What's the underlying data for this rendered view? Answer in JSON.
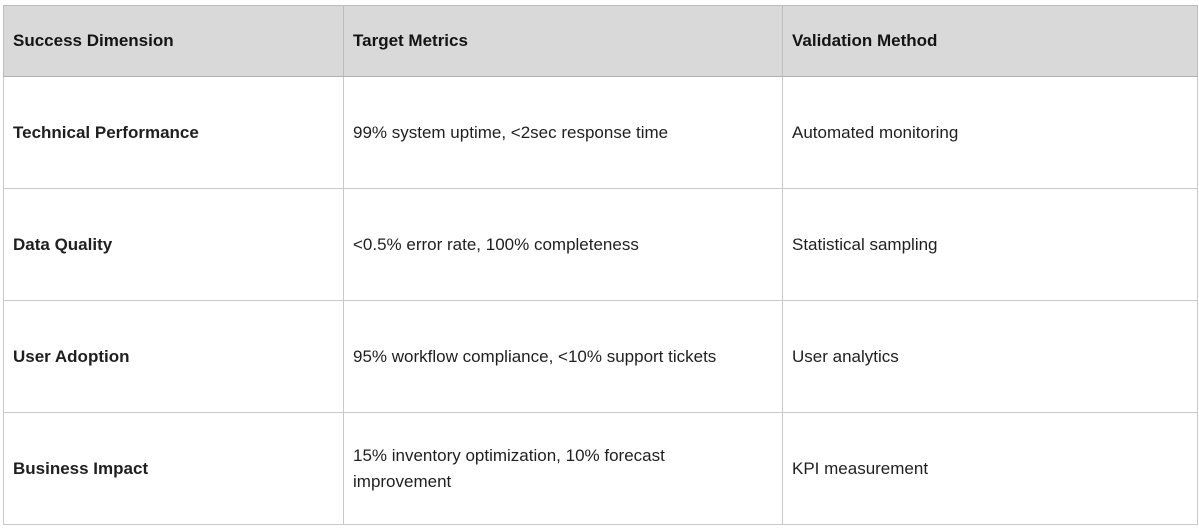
{
  "table": {
    "columns": [
      {
        "label": "Success Dimension"
      },
      {
        "label": "Target Metrics"
      },
      {
        "label": "Validation Method"
      }
    ],
    "rows": [
      {
        "dimension": "Technical Performance",
        "metrics": "99% system uptime, <2sec response time",
        "validation": "Automated monitoring"
      },
      {
        "dimension": "Data Quality",
        "metrics": "<0.5% error rate, 100% completeness",
        "validation": "Statistical sampling"
      },
      {
        "dimension": "User Adoption",
        "metrics": "95% workflow compliance, <10% support tickets",
        "validation": "User analytics"
      },
      {
        "dimension": "Business Impact",
        "metrics": "15% inventory optimization, 10% forecast improvement",
        "validation": "KPI measurement"
      }
    ],
    "colors": {
      "header_bg": "#d9d9d9",
      "border": "#c9c9c9",
      "text": "#1f1f1f"
    }
  }
}
